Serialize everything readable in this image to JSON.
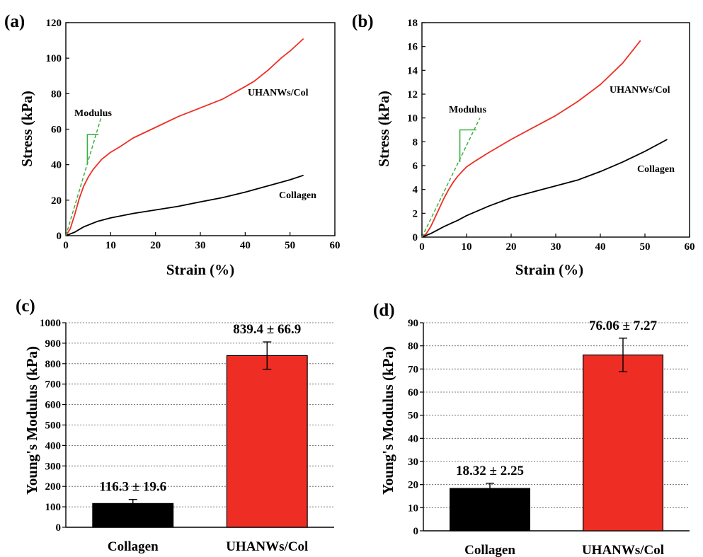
{
  "colors": {
    "collagen": "#000000",
    "uhanws": "#ee2e24",
    "modulus_guide": "#3cb043",
    "grid": "#555555"
  },
  "panels": {
    "a": {
      "label": "(a)"
    },
    "b": {
      "label": "(b)"
    },
    "c": {
      "label": "(c)"
    },
    "d": {
      "label": "(d)"
    }
  },
  "chart_data": [
    {
      "panel": "(a)",
      "type": "line",
      "xlabel": "Strain (%)",
      "ylabel": "Stress (kPa)",
      "xlim": [
        0,
        60
      ],
      "ylim": [
        0,
        120
      ],
      "xticks": [
        0,
        10,
        20,
        30,
        40,
        50,
        60
      ],
      "yticks": [
        0,
        20,
        40,
        60,
        80,
        100,
        120
      ],
      "annotation": "Modulus",
      "series": [
        {
          "name": "UHANWs/Col",
          "color": "#ee2e24",
          "x": [
            0,
            1,
            2,
            3,
            4,
            5,
            6,
            7,
            8,
            10,
            12,
            15,
            20,
            25,
            30,
            35,
            40,
            42,
            45,
            48,
            50,
            53
          ],
          "y": [
            0,
            4,
            12,
            21,
            28,
            33,
            37,
            40,
            43,
            47,
            50,
            55,
            61,
            67,
            72,
            77,
            84,
            87,
            93,
            100,
            104,
            111
          ]
        },
        {
          "name": "Collagen",
          "color": "#000000",
          "x": [
            0,
            1,
            2,
            3,
            4,
            5,
            7,
            10,
            15,
            20,
            25,
            30,
            35,
            40,
            45,
            50,
            53
          ],
          "y": [
            0,
            1,
            2,
            3.5,
            5,
            6,
            8,
            10,
            12.5,
            14.5,
            16.5,
            19,
            21.5,
            24.5,
            28,
            31.5,
            34
          ]
        }
      ]
    },
    {
      "panel": "(b)",
      "type": "line",
      "xlabel": "Strain (%)",
      "ylabel": "Stress (kPa)",
      "xlim": [
        0,
        60
      ],
      "ylim": [
        0,
        18
      ],
      "xticks": [
        0,
        10,
        20,
        30,
        40,
        50,
        60
      ],
      "yticks": [
        0,
        2,
        4,
        6,
        8,
        10,
        12,
        14,
        16,
        18
      ],
      "annotation": "Modulus",
      "series": [
        {
          "name": "UHANWs/Col",
          "color": "#ee2e24",
          "x": [
            0,
            1,
            2,
            3,
            4,
            5,
            6,
            7,
            8,
            9,
            10,
            12,
            15,
            20,
            25,
            30,
            35,
            40,
            45,
            49
          ],
          "y": [
            0,
            0.3,
            0.9,
            1.7,
            2.5,
            3.3,
            4.0,
            4.6,
            5.1,
            5.5,
            5.9,
            6.4,
            7.1,
            8.2,
            9.2,
            10.2,
            11.4,
            12.8,
            14.6,
            16.5
          ]
        },
        {
          "name": "Collagen",
          "color": "#000000",
          "x": [
            0,
            2,
            5,
            8,
            10,
            15,
            20,
            25,
            30,
            35,
            40,
            45,
            50,
            55
          ],
          "y": [
            0,
            0.3,
            0.9,
            1.4,
            1.8,
            2.6,
            3.3,
            3.8,
            4.3,
            4.8,
            5.5,
            6.3,
            7.2,
            8.2
          ]
        }
      ]
    },
    {
      "panel": "(c)",
      "type": "bar",
      "ylabel": "Young's Modulus (kPa)",
      "ylim": [
        0,
        1000
      ],
      "yticks": [
        0,
        100,
        200,
        300,
        400,
        500,
        600,
        700,
        800,
        900,
        1000
      ],
      "grid": true,
      "categories": [
        "Collagen",
        "UHANWs/Col"
      ],
      "values": [
        116.3,
        839.4
      ],
      "errors": [
        19.6,
        66.9
      ],
      "value_labels": [
        "116.3 ± 19.6",
        "839.4 ± 66.9"
      ],
      "colors": [
        "#000000",
        "#ee2e24"
      ]
    },
    {
      "panel": "(d)",
      "type": "bar",
      "ylabel": "Young's Modulus (kPa)",
      "ylim": [
        0,
        90
      ],
      "yticks": [
        0,
        10,
        20,
        30,
        40,
        50,
        60,
        70,
        80,
        90
      ],
      "grid": true,
      "categories": [
        "Collagen",
        "UHANWs/Col"
      ],
      "values": [
        18.32,
        76.06
      ],
      "errors": [
        2.25,
        7.27
      ],
      "value_labels": [
        "18.32 ± 2.25",
        "76.06 ± 7.27"
      ],
      "colors": [
        "#000000",
        "#ee2e24"
      ]
    }
  ]
}
